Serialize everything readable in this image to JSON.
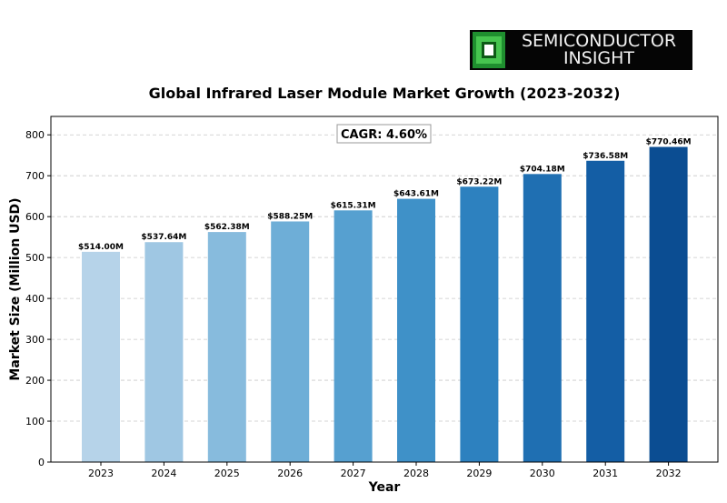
{
  "logo": {
    "line1": "SEMICONDUCTOR",
    "line2": "INSIGHT"
  },
  "chart_data": {
    "type": "bar",
    "title": "Global Infrared Laser Module Market Growth (2023-2032)",
    "xlabel": "Year",
    "ylabel": "Market Size (Million USD)",
    "categories": [
      "2023",
      "2024",
      "2025",
      "2026",
      "2027",
      "2028",
      "2029",
      "2030",
      "2031",
      "2032"
    ],
    "values": [
      514.0,
      537.64,
      562.38,
      588.25,
      615.31,
      643.61,
      673.22,
      704.18,
      736.58,
      770.46
    ],
    "data_labels": [
      "$514.00M",
      "$537.64M",
      "$562.38M",
      "$588.25M",
      "$615.31M",
      "$643.61M",
      "$673.22M",
      "$704.18M",
      "$736.58M",
      "$770.46M"
    ],
    "ylim": [
      0,
      845
    ],
    "yticks": [
      0,
      100,
      200,
      300,
      400,
      500,
      600,
      700,
      800
    ],
    "grid": "y-dashed",
    "annotation": "CAGR: 4.60%",
    "colors": [
      "#b6d3e9",
      "#9fc7e3",
      "#87bbdd",
      "#6eaed7",
      "#56a0d0",
      "#3f91c8",
      "#2d81bf",
      "#1f6fb2",
      "#145ea5",
      "#0b4d92"
    ]
  }
}
